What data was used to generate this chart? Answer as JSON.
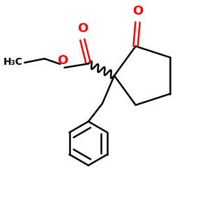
{
  "background_color": "#ffffff",
  "bond_color": "#000000",
  "oxygen_color": "#ff0000",
  "line_width": 1.8,
  "figsize": [
    3.0,
    3.0
  ],
  "dpi": 100,
  "xlim": [
    0.0,
    1.0
  ],
  "ylim": [
    0.0,
    1.0
  ]
}
